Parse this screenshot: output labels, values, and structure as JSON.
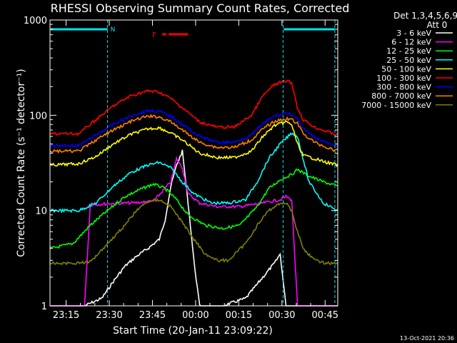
{
  "chart_data": {
    "type": "line",
    "title": "RHESSI Observing Summary Count Rates, Corrected",
    "xlabel": "Start Time (20-Jan-11 23:09:22)",
    "ylabel": "Corrected Count Rate (s⁻¹ detector⁻¹)",
    "yscale": "log",
    "ylim": [
      1,
      1000
    ],
    "y_ticks": [
      1,
      10,
      100,
      1000
    ],
    "y_tick_labels": [
      "1",
      "10",
      "100",
      "1000"
    ],
    "xlim_minutes": [
      0,
      100
    ],
    "x_ticks_minutes": [
      5.6,
      20.6,
      35.6,
      50.6,
      65.6,
      80.6,
      95.6
    ],
    "x_tick_labels": [
      "23:15",
      "23:30",
      "23:45",
      "00:00",
      "00:15",
      "00:30",
      "00:45"
    ],
    "detectors_line1": "Det 1,3,4,5,6,9,",
    "detectors_line2": "Att 0",
    "legend_position": "right",
    "timestamp": "13-Oct-2021 20:36",
    "annotations": {
      "night_label": "N",
      "flare_label": "F",
      "night_intervals_minutes": [
        [
          0,
          20
        ],
        [
          81,
          99
        ]
      ],
      "flare_interval_minutes": [
        39,
        48
      ]
    },
    "colors": {
      "night_bar": "#00e5ee",
      "flare_bar": "#ff0000",
      "axes": "#ffffff"
    },
    "series": [
      {
        "name": "3 - 6 keV",
        "color": "#ffffff",
        "x": [
          0,
          12,
          18,
          22,
          26,
          30,
          34,
          38,
          40,
          42,
          44,
          46,
          48,
          50,
          52,
          54,
          60,
          68,
          74,
          78,
          80,
          82,
          86,
          90,
          95,
          100
        ],
        "y": [
          1.0,
          1.0,
          1.2,
          1.8,
          2.6,
          3.3,
          4.0,
          5.0,
          8.0,
          18,
          30,
          42,
          12,
          3.0,
          1.0,
          1.0,
          1.0,
          1.2,
          2.0,
          2.8,
          3.5,
          1.0,
          1.0,
          1.0,
          1.0,
          1.0
        ]
      },
      {
        "name": "6 - 12 keV",
        "color": "#ff00ff",
        "x": [
          0,
          12,
          14,
          20,
          28,
          36,
          42,
          44,
          46,
          48,
          52,
          58,
          66,
          74,
          80,
          82,
          84,
          86,
          90,
          96,
          100
        ],
        "y": [
          1.0,
          1.0,
          11.5,
          11.8,
          12.0,
          12.5,
          20,
          35,
          28,
          15,
          12,
          11,
          11,
          12,
          13,
          14,
          13,
          1.0,
          1.0,
          1.0,
          1.0
        ]
      },
      {
        "name": "12 - 25 keV",
        "color": "#00ff00",
        "x": [
          0,
          8,
          14,
          20,
          26,
          32,
          36,
          40,
          44,
          48,
          54,
          60,
          66,
          72,
          76,
          80,
          84,
          86,
          90,
          95,
          100
        ],
        "y": [
          4.0,
          4.5,
          7.0,
          10,
          14,
          17,
          19,
          17,
          13,
          9,
          7,
          6.5,
          7.0,
          11,
          17,
          21,
          24,
          27,
          23,
          20,
          18
        ]
      },
      {
        "name": "25 - 50 keV",
        "color": "#00ffff",
        "x": [
          0,
          10,
          16,
          22,
          28,
          34,
          38,
          42,
          46,
          50,
          56,
          62,
          68,
          72,
          76,
          80,
          84,
          86,
          90,
          95,
          100
        ],
        "y": [
          10,
          10,
          12,
          18,
          25,
          30,
          32,
          28,
          20,
          15,
          12,
          12,
          13,
          20,
          35,
          50,
          65,
          60,
          20,
          12,
          10
        ]
      },
      {
        "name": "50 - 100 keV",
        "color": "#ffff00",
        "x": [
          0,
          10,
          16,
          22,
          28,
          34,
          38,
          42,
          46,
          52,
          58,
          64,
          70,
          74,
          78,
          82,
          84,
          86,
          88,
          92,
          96,
          100
        ],
        "y": [
          30,
          31,
          37,
          50,
          63,
          72,
          74,
          65,
          55,
          40,
          36,
          36,
          42,
          60,
          78,
          85,
          80,
          50,
          38,
          35,
          32,
          30
        ]
      },
      {
        "name": "100 - 300 keV",
        "color": "#ff0000",
        "x": [
          0,
          10,
          16,
          22,
          28,
          34,
          38,
          42,
          46,
          52,
          58,
          64,
          70,
          74,
          78,
          82,
          84,
          86,
          88,
          92,
          96,
          100
        ],
        "y": [
          64,
          64,
          90,
          125,
          160,
          180,
          175,
          150,
          120,
          85,
          75,
          75,
          100,
          160,
          210,
          230,
          220,
          120,
          90,
          75,
          68,
          62
        ]
      },
      {
        "name": "300 - 800 keV",
        "color": "#0000ff",
        "x": [
          0,
          10,
          16,
          22,
          28,
          34,
          38,
          42,
          46,
          52,
          58,
          64,
          70,
          74,
          78,
          82,
          84,
          86,
          88,
          92,
          96,
          100
        ],
        "y": [
          48,
          48,
          62,
          80,
          98,
          112,
          110,
          98,
          80,
          60,
          52,
          52,
          62,
          82,
          98,
          105,
          102,
          90,
          72,
          58,
          52,
          48
        ]
      },
      {
        "name": "800 - 7000 keV",
        "color": "#ff7f00",
        "x": [
          0,
          10,
          16,
          22,
          28,
          34,
          38,
          42,
          46,
          52,
          58,
          64,
          70,
          74,
          78,
          82,
          84,
          86,
          88,
          92,
          96,
          100
        ],
        "y": [
          42,
          42,
          55,
          70,
          86,
          98,
          96,
          85,
          70,
          52,
          46,
          46,
          55,
          72,
          86,
          92,
          90,
          82,
          64,
          52,
          46,
          42
        ]
      },
      {
        "name": "7000 - 15000 keV",
        "color": "#808000",
        "x": [
          0,
          8,
          14,
          20,
          26,
          30,
          34,
          38,
          42,
          46,
          50,
          54,
          58,
          62,
          68,
          72,
          76,
          80,
          82,
          84,
          86,
          88,
          92,
          96,
          100
        ],
        "y": [
          2.8,
          2.8,
          2.9,
          4.5,
          7.0,
          10,
          12.5,
          13,
          11,
          7.5,
          5.0,
          3.5,
          3.0,
          3.0,
          4.5,
          7.0,
          10,
          12,
          12,
          10,
          6.0,
          4.0,
          3.0,
          2.8,
          2.8
        ]
      }
    ]
  }
}
